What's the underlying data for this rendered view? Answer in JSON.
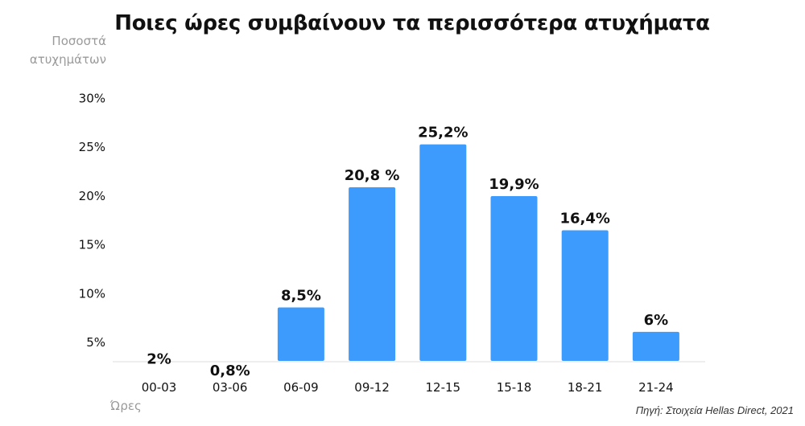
{
  "chart_data": {
    "type": "bar",
    "title": "Ποιες ώρες συμβαίνουν τα περισσότερα ατυχήματα",
    "ylabel": "Ποσοστά ατυχημάτων",
    "xlabel": "Ώρες",
    "source": "Πηγή: Στοιχεία Hellas Direct, 2021",
    "categories": [
      "00-03",
      "03-06",
      "06-09",
      "09-12",
      "12-15",
      "15-18",
      "18-21",
      "21-24"
    ],
    "values": [
      2,
      0.8,
      8.5,
      20.8,
      25.2,
      19.9,
      16.4,
      6
    ],
    "data_labels": [
      "2%",
      "0,8%",
      "8,5%",
      "20,8 %",
      "25,2%",
      "19,9%",
      "16,4%",
      "6%"
    ],
    "yticks": [
      "5%",
      "10%",
      "15%",
      "20%",
      "25%",
      "30%"
    ],
    "ytick_values": [
      5,
      10,
      15,
      20,
      25,
      30
    ],
    "bar_color": "#3d9bfd",
    "grid": false,
    "legend": "none"
  }
}
